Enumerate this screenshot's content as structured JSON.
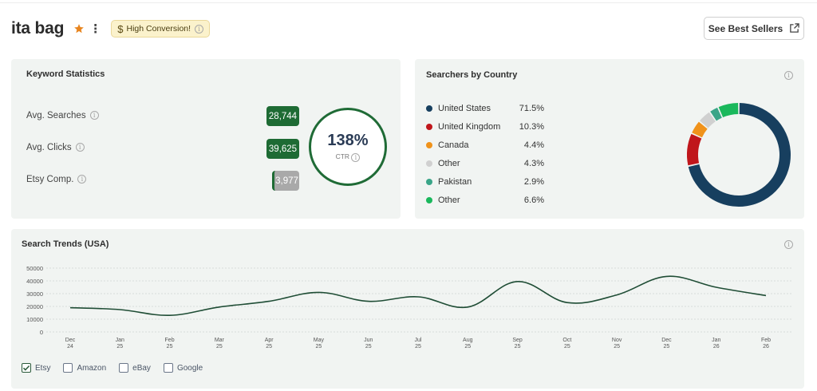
{
  "header": {
    "title": "ita bag",
    "badge_label": "High Conversion!",
    "best_sellers_label": "See Best Sellers"
  },
  "keyword_stats": {
    "title": "Keyword Statistics",
    "rows": [
      {
        "label": "Avg. Searches",
        "value": "28,744",
        "color": "#1e6b34"
      },
      {
        "label": "Avg. Clicks",
        "value": "39,625",
        "color": "#1e6b34"
      },
      {
        "label": "Etsy Comp.",
        "value": "3,977",
        "color": "#a9a9a9",
        "accent": "#1e6b34"
      }
    ],
    "ctr_value": "138%",
    "ctr_label": "CTR"
  },
  "country": {
    "title": "Searchers by Country",
    "items": [
      {
        "name": "United States",
        "pct": "71.5%",
        "value": 71.5,
        "color": "#173f5f"
      },
      {
        "name": "United Kingdom",
        "pct": "10.3%",
        "value": 10.3,
        "color": "#c0161b"
      },
      {
        "name": "Canada",
        "pct": "4.4%",
        "value": 4.4,
        "color": "#f0921a"
      },
      {
        "name": "Other",
        "pct": "4.3%",
        "value": 4.3,
        "color": "#d0d0d0"
      },
      {
        "name": "Pakistan",
        "pct": "2.9%",
        "value": 2.9,
        "color": "#3aa588"
      },
      {
        "name": "Other",
        "pct": "6.6%",
        "value": 6.6,
        "color": "#1ab85c"
      }
    ]
  },
  "trends": {
    "title": "Search Trends (USA)",
    "legend": [
      {
        "label": "Etsy",
        "checked": true
      },
      {
        "label": "Amazon",
        "checked": false
      },
      {
        "label": "eBay",
        "checked": false
      },
      {
        "label": "Google",
        "checked": false
      }
    ]
  },
  "chart_data": {
    "type": "line",
    "title": "Search Trends (USA)",
    "x_labels": [
      [
        "Dec",
        "24"
      ],
      [
        "Jan",
        "25"
      ],
      [
        "Feb",
        "25"
      ],
      [
        "Mar",
        "25"
      ],
      [
        "Apr",
        "25"
      ],
      [
        "May",
        "25"
      ],
      [
        "Jun",
        "25"
      ],
      [
        "Jul",
        "25"
      ],
      [
        "Aug",
        "25"
      ],
      [
        "Sep",
        "25"
      ],
      [
        "Oct",
        "25"
      ],
      [
        "Nov",
        "25"
      ],
      [
        "Dec",
        "25"
      ],
      [
        "Jan",
        "26"
      ],
      [
        "Feb",
        "26"
      ]
    ],
    "y_ticks": [
      0,
      10000,
      20000,
      30000,
      40000,
      50000
    ],
    "ylim": [
      0,
      50000
    ],
    "grid": true,
    "series": [
      {
        "name": "Etsy",
        "color": "#1f4d35",
        "values": [
          19000,
          17500,
          13000,
          19500,
          24000,
          31000,
          24000,
          27500,
          19500,
          39500,
          23000,
          29000,
          43500,
          35000,
          28500
        ]
      }
    ]
  }
}
